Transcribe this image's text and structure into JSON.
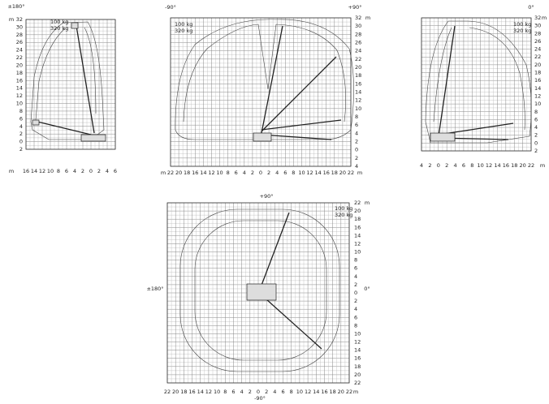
{
  "panels": [
    {
      "angles": [
        "±180°"
      ],
      "load": [
        "100 kg",
        "320 kg"
      ],
      "units": [
        "m",
        "m"
      ],
      "y_labels": [
        "32",
        "30",
        "28",
        "26",
        "24",
        "22",
        "20",
        "18",
        "16",
        "14",
        "12",
        "10",
        "8",
        "6",
        "4",
        "2",
        "0",
        "2"
      ],
      "x_labels": [
        "16",
        "14",
        "12",
        "10",
        "8",
        "6",
        "4",
        "2",
        "0",
        "2",
        "4",
        "6"
      ]
    },
    {
      "angles": [
        "-90°",
        "+90°"
      ],
      "load": [
        "100 kg",
        "320 kg"
      ],
      "units": [
        "m",
        "m",
        "m"
      ],
      "y_labels": [
        "32",
        "30",
        "28",
        "26",
        "24",
        "22",
        "20",
        "18",
        "16",
        "14",
        "12",
        "10",
        "8",
        "6",
        "4",
        "2",
        "0",
        "2",
        "4"
      ],
      "x_labels": [
        "22",
        "20",
        "18",
        "16",
        "14",
        "12",
        "10",
        "8",
        "6",
        "4",
        "2",
        "0",
        "2",
        "4",
        "6",
        "8",
        "10",
        "12",
        "14",
        "16",
        "18",
        "20",
        "22"
      ]
    },
    {
      "angles": [
        "0°"
      ],
      "load": [
        "100 kg",
        "320 kg"
      ],
      "units": [
        "m",
        "m"
      ],
      "y_labels": [
        "32",
        "30",
        "28",
        "26",
        "24",
        "22",
        "20",
        "18",
        "16",
        "14",
        "12",
        "10",
        "8",
        "6",
        "4",
        "2",
        "0",
        "2"
      ],
      "x_labels": [
        "4",
        "2",
        "0",
        "2",
        "4",
        "6",
        "8",
        "10",
        "12",
        "14",
        "16",
        "18",
        "20",
        "22"
      ]
    },
    {
      "angles": [
        "+90°",
        "-90°",
        "±180°",
        "0°"
      ],
      "load": [
        "100 kg",
        "320 kg"
      ],
      "units": [
        "m",
        "m"
      ],
      "y_labels": [
        "22",
        "20",
        "18",
        "16",
        "14",
        "12",
        "10",
        "8",
        "6",
        "4",
        "2",
        "0",
        "2",
        "4",
        "6",
        "8",
        "10",
        "12",
        "14",
        "16",
        "18",
        "20",
        "22"
      ],
      "x_labels": [
        "22",
        "20",
        "18",
        "16",
        "14",
        "12",
        "10",
        "8",
        "6",
        "4",
        "2",
        "0",
        "2",
        "4",
        "6",
        "8",
        "10",
        "12",
        "14",
        "16",
        "18",
        "20",
        "22"
      ]
    }
  ]
}
